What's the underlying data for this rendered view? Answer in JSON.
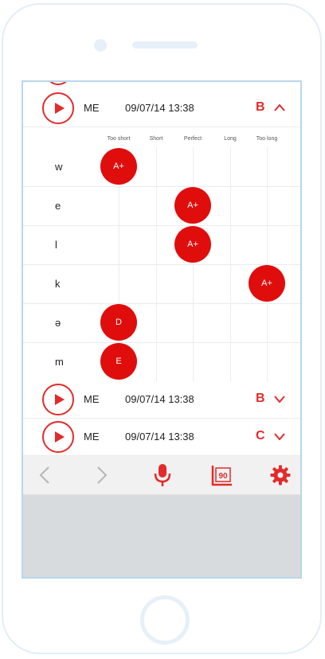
{
  "colors": {
    "accent": "#e32b2b",
    "bubble": "#e00d0d",
    "frame": "#b9d6ec"
  },
  "recordings": [
    {
      "user": "ME",
      "datetime": "09/07/14 13:38",
      "grade": "B",
      "expanded": true
    },
    {
      "user": "ME",
      "datetime": "09/07/14 13:38",
      "grade": "B",
      "expanded": false
    },
    {
      "user": "ME",
      "datetime": "09/07/14 13:38",
      "grade": "C",
      "expanded": false
    }
  ],
  "columns": [
    "Too short",
    "Short",
    "Perfect",
    "Long",
    "Too long"
  ],
  "sounds": [
    {
      "letter": "w",
      "grade": "A+",
      "column": "Too short"
    },
    {
      "letter": "e",
      "grade": "A+",
      "column": "Perfect"
    },
    {
      "letter": "l",
      "grade": "A+",
      "column": "Perfect"
    },
    {
      "letter": "k",
      "grade": "A+",
      "column": "Too long"
    },
    {
      "letter": "ə",
      "grade": "D",
      "column": "Too short"
    },
    {
      "letter": "m",
      "grade": "E",
      "column": "Too short"
    }
  ],
  "toolbar": {
    "icons": [
      "chevron-left-icon",
      "chevron-right-icon",
      "microphone-icon",
      "score-90-icon",
      "gear-icon"
    ],
    "score_badge": "90"
  }
}
